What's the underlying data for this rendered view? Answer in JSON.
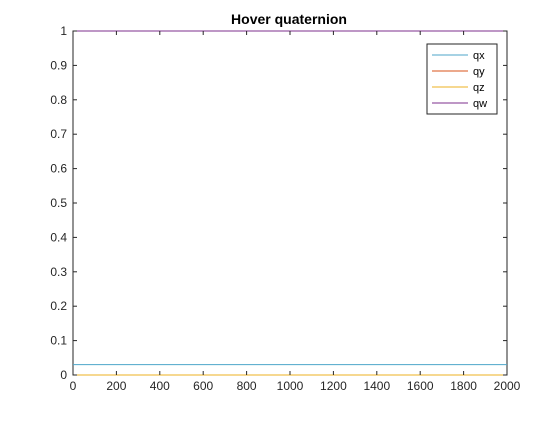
{
  "chart_data": {
    "type": "line",
    "title": "Hover quaternion",
    "xlabel": "",
    "ylabel": "",
    "xlim": [
      0,
      2000
    ],
    "ylim": [
      0,
      1
    ],
    "x_ticks": [
      0,
      200,
      400,
      600,
      800,
      1000,
      1200,
      1400,
      1600,
      1800,
      2000
    ],
    "y_ticks": [
      0,
      0.1,
      0.2,
      0.3,
      0.4,
      0.5,
      0.6,
      0.7,
      0.8,
      0.9,
      1
    ],
    "x_tick_labels": [
      "0",
      "200",
      "400",
      "600",
      "800",
      "1000",
      "1200",
      "1400",
      "1600",
      "1800",
      "2000"
    ],
    "y_tick_labels": [
      "0",
      "0.1",
      "0.2",
      "0.3",
      "0.4",
      "0.5",
      "0.6",
      "0.7",
      "0.8",
      "0.9",
      "1"
    ],
    "grid": false,
    "legend_position": "top-right",
    "series": [
      {
        "name": "qx",
        "color": "#4da6c9",
        "x": [
          0,
          2000
        ],
        "y": [
          0.03,
          0.03
        ]
      },
      {
        "name": "qy",
        "color": "#d95319",
        "x": [
          0,
          2000
        ],
        "y": [
          0,
          0
        ]
      },
      {
        "name": "qz",
        "color": "#edb120",
        "x": [
          0,
          2000
        ],
        "y": [
          0,
          0
        ]
      },
      {
        "name": "qw",
        "color": "#7e2f8e",
        "x": [
          0,
          2000
        ],
        "y": [
          1,
          1
        ]
      }
    ]
  }
}
